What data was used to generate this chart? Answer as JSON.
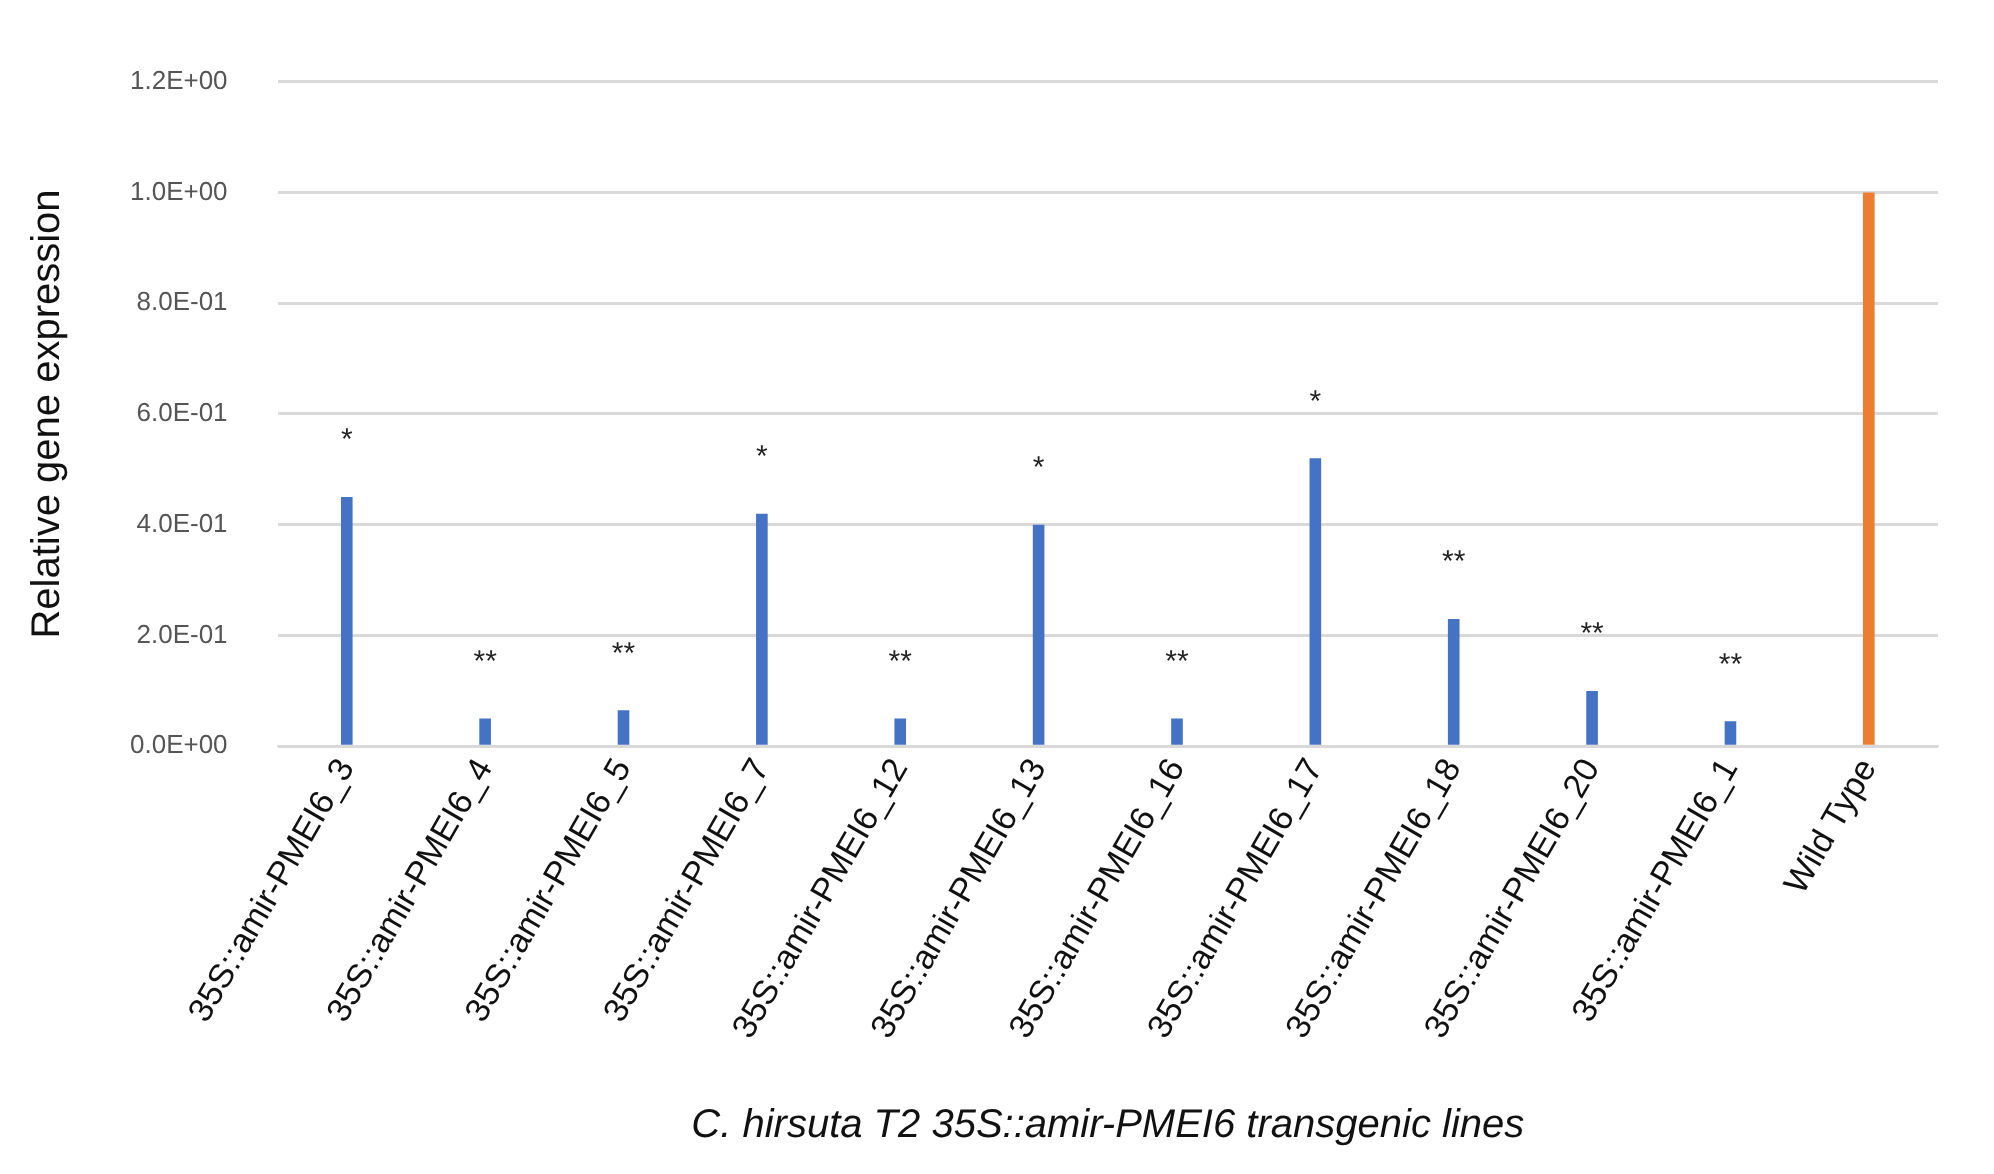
{
  "chart_data": {
    "type": "bar",
    "xlabel": "C. hirsuta T2 35S::amir-PMEI6 transgenic lines",
    "ylabel": "Relative gene expression",
    "categories": [
      "35S::amir-PMEI6_3",
      "35S::amir-PMEI6_4",
      "35S::amir-PMEI6_5",
      "35S::amir-PMEI6_7",
      "35S::amir-PMEI6_12",
      "35S::amir-PMEI6_13",
      "35S::amir-PMEI6_16",
      "35S::amir-PMEI6_17",
      "35S::amir-PMEI6_18",
      "35S::amir-PMEI6_20",
      "35S::amir-PMEI6_1",
      "Wild Type"
    ],
    "values": [
      0.45,
      0.05,
      0.065,
      0.42,
      0.05,
      0.4,
      0.05,
      0.52,
      0.23,
      0.1,
      0.045,
      1.0
    ],
    "colors": [
      "#4472c4",
      "#4472c4",
      "#4472c4",
      "#4472c4",
      "#4472c4",
      "#4472c4",
      "#4472c4",
      "#4472c4",
      "#4472c4",
      "#4472c4",
      "#4472c4",
      "#ed7d31"
    ],
    "ylim": [
      0,
      1.2
    ],
    "yticks": [
      {
        "value": 0,
        "label": "0.0E+00"
      },
      {
        "value": 0.2,
        "label": "2.0E-01"
      },
      {
        "value": 0.4,
        "label": "4.0E-01"
      },
      {
        "value": 0.6,
        "label": "6.0E-01"
      },
      {
        "value": 0.8,
        "label": "8.0E-01"
      },
      {
        "value": 1.0,
        "label": "1.0E+00"
      },
      {
        "value": 1.2,
        "label": "1.2E+00"
      }
    ],
    "grid": "y",
    "legend": false,
    "annotations": [
      {
        "text": "*",
        "x": "35S::amir-PMEI6_3",
        "y": 0.45
      },
      {
        "text": "**",
        "x": "35S::amir-PMEI6_4",
        "y": 0.05
      },
      {
        "text": "**",
        "x": "35S::amir-PMEI6_5",
        "y": 0.065
      },
      {
        "text": "*",
        "x": "35S::amir-PMEI6_7",
        "y": 0.42
      },
      {
        "text": "**",
        "x": "35S::amir-PMEI6_12",
        "y": 0.05
      },
      {
        "text": "*",
        "x": "35S::amir-PMEI6_13",
        "y": 0.4
      },
      {
        "text": "**",
        "x": "35S::amir-PMEI6_16",
        "y": 0.05
      },
      {
        "text": "*",
        "x": "35S::amir-PMEI6_17",
        "y": 0.52
      },
      {
        "text": "**",
        "x": "35S::amir-PMEI6_18",
        "y": 0.23
      },
      {
        "text": "**",
        "x": "35S::amir-PMEI6_20",
        "y": 0.1
      },
      {
        "text": "**",
        "x": "35S::amir-PMEI6_1",
        "y": 0.045
      }
    ]
  }
}
